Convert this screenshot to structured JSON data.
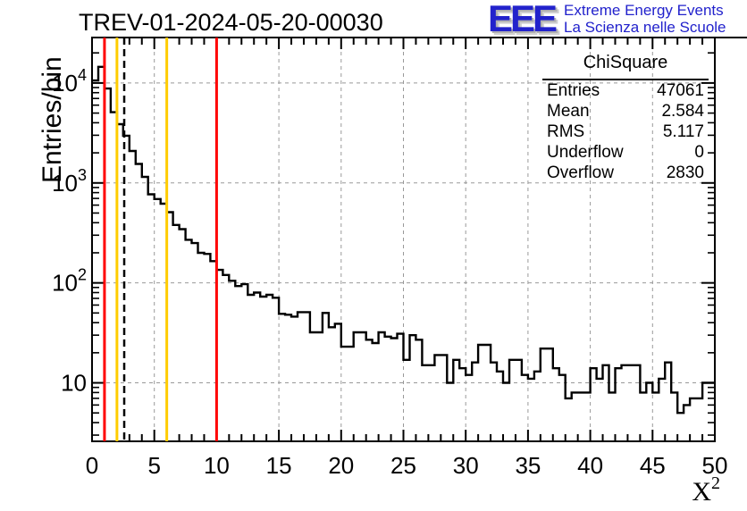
{
  "header": {
    "title": "TREV-01-2024-05-20-00030"
  },
  "logo": {
    "acronym": "EEE",
    "line1": "Extreme Energy Events",
    "line2": "La Scienza nelle Scuole",
    "color": "#2222cc"
  },
  "stats_box": {
    "title": "ChiSquare",
    "rows": [
      {
        "label": "Entries",
        "value": "47061"
      },
      {
        "label": "Mean",
        "value": "2.584"
      },
      {
        "label": "RMS",
        "value": "5.117"
      },
      {
        "label": "Underflow",
        "value": "0"
      },
      {
        "label": "Overflow",
        "value": "2830"
      }
    ]
  },
  "axes": {
    "y_title": "Entries/bin",
    "x_title_base": "X",
    "x_title_exp": "2",
    "x_tick_labels": [
      "0",
      "5",
      "10",
      "15",
      "20",
      "25",
      "30",
      "35",
      "40",
      "45",
      "50"
    ],
    "y_tick_labels": [
      {
        "base": "10",
        "exp": ""
      },
      {
        "base": "10",
        "exp": "2"
      },
      {
        "base": "10",
        "exp": "3"
      },
      {
        "base": "10",
        "exp": "4"
      }
    ]
  },
  "chart_data": {
    "type": "bar",
    "subtype": "step-histogram",
    "title": "TREV-01-2024-05-20-00030",
    "xlabel": "X^2",
    "ylabel": "Entries/bin",
    "x_range": [
      0,
      50
    ],
    "y_range": [
      2.6,
      28500
    ],
    "y_scale": "log",
    "grid": {
      "show": true,
      "color": "#999999",
      "dashed": true
    },
    "bin_start": 0,
    "bin_width": 0.5,
    "bins": [
      10600,
      14500,
      8800,
      5100,
      3870,
      2970,
      2090,
      1550,
      1150,
      770,
      690,
      620,
      510,
      380,
      345,
      270,
      250,
      200,
      195,
      165,
      135,
      120,
      105,
      93,
      97,
      76,
      80,
      73,
      76,
      71,
      49,
      48,
      46,
      51,
      51,
      32,
      32,
      50,
      36,
      39,
      23,
      23,
      32,
      32,
      27,
      25,
      32,
      29,
      28,
      31,
      17,
      30,
      27,
      15,
      15,
      19,
      19,
      10,
      17,
      14,
      12,
      16,
      24,
      24,
      16,
      13,
      10,
      17,
      17,
      12,
      11,
      13,
      22,
      22,
      14,
      12,
      7,
      8,
      8,
      8,
      14,
      11,
      15,
      8,
      14,
      15,
      15,
      15,
      8,
      10,
      8,
      11,
      16,
      8,
      5,
      6,
      7,
      7,
      10,
      10
    ],
    "line_color": "#000000",
    "marker_lines": [
      {
        "x": 1,
        "color": "#ff0000",
        "style": "solid"
      },
      {
        "x": 2,
        "color": "#ffcc00",
        "style": "solid"
      },
      {
        "x": 2.584,
        "color": "#000000",
        "style": "dashed"
      },
      {
        "x": 6,
        "color": "#ffcc00",
        "style": "solid"
      },
      {
        "x": 10,
        "color": "#ff0000",
        "style": "solid"
      }
    ]
  }
}
